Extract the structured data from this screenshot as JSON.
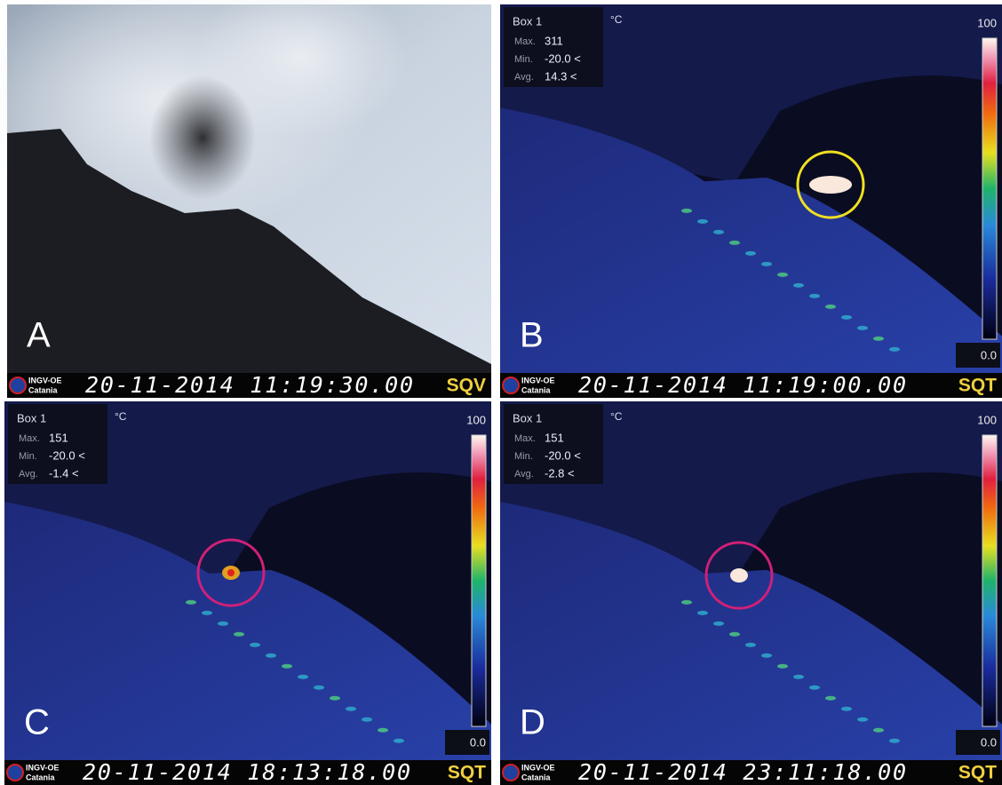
{
  "panels": [
    {
      "label": "A",
      "logo": {
        "name": "INGV-OE",
        "city": "Catania"
      },
      "timestamp": "20-11-2014 11:19:30.00",
      "station": "SQV"
    },
    {
      "label": "B",
      "logo": {
        "name": "INGV-OE",
        "city": "Catania"
      },
      "timestamp": "20-11-2014 11:19:00.00",
      "station": "SQT",
      "box": {
        "title": "Box 1",
        "unit": "°C",
        "rows": [
          {
            "name": "Max.",
            "value": "311"
          },
          {
            "name": "Min.",
            "value": "-20.0 <"
          },
          {
            "name": "Avg.",
            "value": "14.3 <"
          }
        ]
      },
      "scale": {
        "max": "100",
        "min": "0.0"
      }
    },
    {
      "label": "C",
      "logo": {
        "name": "INGV-OE",
        "city": "Catania"
      },
      "timestamp": "20-11-2014 18:13:18.00",
      "station": "SQT",
      "box": {
        "title": "Box 1",
        "unit": "°C",
        "rows": [
          {
            "name": "Max.",
            "value": "151"
          },
          {
            "name": "Min.",
            "value": "-20.0 <"
          },
          {
            "name": "Avg.",
            "value": "-1.4 <"
          }
        ]
      },
      "scale": {
        "max": "100",
        "min": "0.0"
      }
    },
    {
      "label": "D",
      "logo": {
        "name": "INGV-OE",
        "city": "Catania"
      },
      "timestamp": "20-11-2014 23:11:18.00",
      "station": "SQT",
      "box": {
        "title": "Box 1",
        "unit": "°C",
        "rows": [
          {
            "name": "Max.",
            "value": "151"
          },
          {
            "name": "Min.",
            "value": "-20.0 <"
          },
          {
            "name": "Avg.",
            "value": "-2.8 <"
          }
        ]
      },
      "scale": {
        "max": "100",
        "min": "0.0"
      }
    }
  ]
}
